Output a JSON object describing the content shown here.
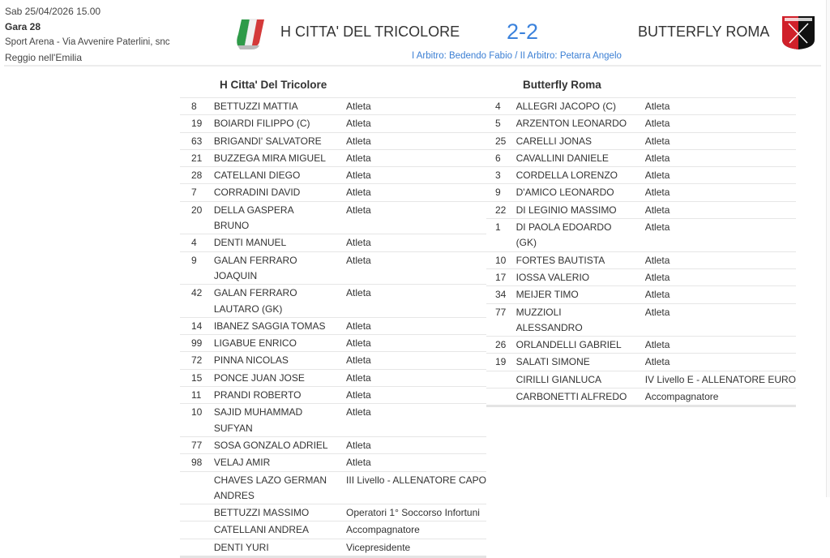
{
  "match": {
    "datetime": "Sab 25/04/2026 15.00",
    "game": "Gara 28",
    "venue": "Sport Arena - Via Avvenire Paterlini, snc",
    "city": "Reggio nell'Emilia",
    "home_team": "H CITTA' DEL TRICOLORE",
    "away_team": "BUTTERFLY ROMA",
    "score": "2-2",
    "referees": "I Arbitro: Bedendo Fabio / II Arbitro: Petarra Angelo",
    "away_logo_text": "BUTTERFLY ROMA"
  },
  "colors": {
    "score": "#3b82dc",
    "referees": "#3b7fd4"
  },
  "home": {
    "title": "H Citta' Del Tricolore",
    "rows": [
      {
        "num": "8",
        "name": "BETTUZZI MATTIA",
        "role": "Atleta"
      },
      {
        "num": "19",
        "name": "BOIARDI FILIPPO (C)",
        "role": "Atleta"
      },
      {
        "num": "63",
        "name": "BRIGANDI' SALVATORE",
        "role": "Atleta"
      },
      {
        "num": "21",
        "name": "BUZZEGA MIRA MIGUEL",
        "role": "Atleta"
      },
      {
        "num": "28",
        "name": "CATELLANI DIEGO",
        "role": "Atleta"
      },
      {
        "num": "7",
        "name": "CORRADINI DAVID",
        "role": "Atleta"
      },
      {
        "num": "20",
        "name": "DELLA GASPERA BRUNO",
        "role": "Atleta"
      },
      {
        "num": "4",
        "name": "DENTI MANUEL",
        "role": "Atleta"
      },
      {
        "num": "9",
        "name": "GALAN FERRARO JOAQUIN",
        "role": "Atleta"
      },
      {
        "num": "42",
        "name": "GALAN FERRARO LAUTARO (GK)",
        "role": "Atleta"
      },
      {
        "num": "14",
        "name": "IBANEZ SAGGIA TOMAS",
        "role": "Atleta"
      },
      {
        "num": "99",
        "name": "LIGABUE ENRICO",
        "role": "Atleta"
      },
      {
        "num": "72",
        "name": "PINNA NICOLAS",
        "role": "Atleta"
      },
      {
        "num": "15",
        "name": "PONCE JUAN JOSE",
        "role": "Atleta"
      },
      {
        "num": "11",
        "name": "PRANDI ROBERTO",
        "role": "Atleta"
      },
      {
        "num": "10",
        "name": "SAJID MUHAMMAD SUFYAN",
        "role": "Atleta"
      },
      {
        "num": "77",
        "name": "SOSA GONZALO ADRIEL",
        "role": "Atleta"
      },
      {
        "num": "98",
        "name": "VELAJ AMIR",
        "role": "Atleta"
      },
      {
        "num": "",
        "name": "CHAVES LAZO GERMAN ANDRES",
        "role": "III Livello - ALLENATORE CAPO"
      },
      {
        "num": "",
        "name": "BETTUZZI MASSIMO",
        "role": "Operatori 1° Soccorso Infortuni"
      },
      {
        "num": "",
        "name": "CATELLANI ANDREA",
        "role": "Accompagnatore"
      },
      {
        "num": "",
        "name": "DENTI YURI",
        "role": "Vicepresidente"
      }
    ]
  },
  "away": {
    "title": "Butterfly Roma",
    "rows": [
      {
        "num": "4",
        "name": "ALLEGRI JACOPO (C)",
        "role": "Atleta"
      },
      {
        "num": "5",
        "name": "ARZENTON LEONARDO",
        "role": "Atleta"
      },
      {
        "num": "25",
        "name": "CARELLI JONAS",
        "role": "Atleta"
      },
      {
        "num": "6",
        "name": "CAVALLINI DANIELE",
        "role": "Atleta"
      },
      {
        "num": "3",
        "name": "CORDELLA LORENZO",
        "role": "Atleta"
      },
      {
        "num": "9",
        "name": "D'AMICO LEONARDO",
        "role": "Atleta"
      },
      {
        "num": "22",
        "name": "DI LEGINIO MASSIMO",
        "role": "Atleta"
      },
      {
        "num": "1",
        "name": "DI PAOLA EDOARDO (GK)",
        "role": "Atleta"
      },
      {
        "num": "10",
        "name": "FORTES BAUTISTA",
        "role": "Atleta"
      },
      {
        "num": "17",
        "name": "IOSSA VALERIO",
        "role": "Atleta"
      },
      {
        "num": "34",
        "name": "MEIJER TIMO",
        "role": "Atleta"
      },
      {
        "num": "77",
        "name": "MUZZIOLI ALESSANDRO",
        "role": "Atleta"
      },
      {
        "num": "26",
        "name": "ORLANDELLI GABRIEL",
        "role": "Atleta"
      },
      {
        "num": "19",
        "name": "SALATI SIMONE",
        "role": "Atleta"
      },
      {
        "num": "",
        "name": "CIRILLI GIANLUCA",
        "role": "IV Livello E - ALLENATORE EURO"
      },
      {
        "num": "",
        "name": "CARBONETTI ALFREDO",
        "role": "Accompagnatore"
      }
    ]
  }
}
